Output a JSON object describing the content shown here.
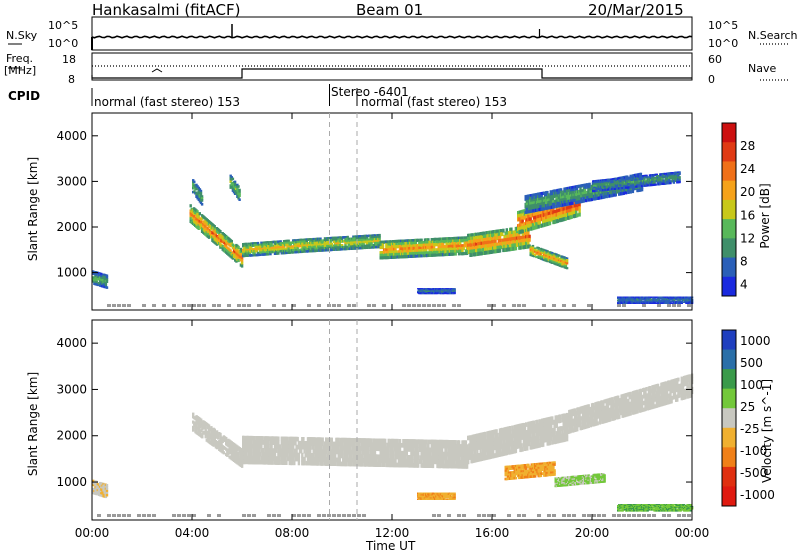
{
  "header": {
    "station": "Hankasalmi (fitACF)",
    "beam": "Beam 01",
    "date": "20/Mar/2015"
  },
  "panels": {
    "nsky": {
      "left_label": "N.Sky",
      "tick_top": "10^5",
      "tick_bottom": "10^0",
      "right_tick_top": "10^5",
      "right_tick_bottom": "10^0",
      "right_label": "N.Search"
    },
    "freq": {
      "left_label_1": "Freq.",
      "left_label_2": "[MHz]",
      "tick_top": "18",
      "tick_bottom": "8",
      "right_tick_top": "60",
      "right_tick_bottom": "0",
      "right_label": "Nave"
    },
    "cpid": {
      "label": "CPID",
      "segments": [
        {
          "name": "normal (fast stereo) 153",
          "start_hour": 0.0
        },
        {
          "name": "Stereo -6401",
          "start_hour": 9.5
        },
        {
          "name": "normal (fast stereo) 153",
          "start_hour": 10.6
        }
      ]
    }
  },
  "time_axis": {
    "label": "Time UT",
    "ticks": [
      "00:00",
      "04:00",
      "08:00",
      "12:00",
      "16:00",
      "20:00",
      "00:00"
    ]
  },
  "power_panel": {
    "ylabel": "Slant Range [km]",
    "yticks": [
      "4000",
      "3000",
      "2000",
      "1000"
    ],
    "colorbar_label": "Power [dB]",
    "colorbar_ticks": [
      "28",
      "24",
      "20",
      "16",
      "12",
      "8",
      "4"
    ]
  },
  "velocity_panel": {
    "ylabel": "Slant Range [km]",
    "yticks": [
      "4000",
      "3000",
      "2000",
      "1000"
    ],
    "colorbar_label": "Velocity [m s^-1]",
    "colorbar_ticks": [
      "1000",
      "500",
      "100",
      "25",
      "-25",
      "-100",
      "-500",
      "-1000"
    ]
  },
  "colors": {
    "power_scale": [
      "#1a2adf",
      "#2a5fb8",
      "#3f8f6a",
      "#58b85a",
      "#c8c81a",
      "#f5a21a",
      "#f07018",
      "#e03a14",
      "#cc1010"
    ],
    "velocity_scale": [
      "#1f3fbf",
      "#2a6fa8",
      "#3a9a4a",
      "#73c83a",
      "#c8c8c0",
      "#f0b030",
      "#f08018",
      "#e03010",
      "#e01a10"
    ],
    "ground_scatter": "#9a9a9a"
  },
  "chart_data": [
    {
      "type": "heatmap",
      "name": "power",
      "x_range_hours": [
        0,
        24
      ],
      "y_range_km": [
        180,
        4500
      ],
      "z_range_db": [
        0,
        30
      ],
      "bands": [
        {
          "t0": 3.9,
          "t1": 6.0,
          "r0": 2300,
          "r1": 1300,
          "w": 400,
          "v": 20
        },
        {
          "t0": 4.0,
          "t1": 4.4,
          "r0": 2900,
          "r1": 2600,
          "w": 300,
          "v": 10
        },
        {
          "t0": 5.5,
          "t1": 5.9,
          "r0": 3000,
          "r1": 2700,
          "w": 300,
          "v": 12
        },
        {
          "t0": 6.0,
          "t1": 8.5,
          "r0": 1500,
          "r1": 1600,
          "w": 300,
          "v": 16
        },
        {
          "t0": 8.5,
          "t1": 11.5,
          "r0": 1600,
          "r1": 1700,
          "w": 300,
          "v": 14
        },
        {
          "t0": 11.5,
          "t1": 15.0,
          "r0": 1500,
          "r1": 1600,
          "w": 400,
          "v": 18
        },
        {
          "t0": 15.0,
          "t1": 17.5,
          "r0": 1600,
          "r1": 1800,
          "w": 500,
          "v": 20
        },
        {
          "t0": 17.0,
          "t1": 19.5,
          "r0": 2100,
          "r1": 2500,
          "w": 500,
          "v": 22
        },
        {
          "t0": 17.5,
          "t1": 19.0,
          "r0": 1500,
          "r1": 1200,
          "w": 250,
          "v": 18
        },
        {
          "t0": 17.3,
          "t1": 22.0,
          "r0": 2500,
          "r1": 3000,
          "w": 400,
          "v": 10
        },
        {
          "t0": 20.0,
          "t1": 23.5,
          "r0": 2900,
          "r1": 3100,
          "w": 250,
          "v": 8
        },
        {
          "t0": 0.0,
          "t1": 0.6,
          "r0": 900,
          "r1": 800,
          "w": 300,
          "v": 10
        },
        {
          "t0": 13.0,
          "t1": 14.5,
          "r0": 600,
          "r1": 600,
          "w": 120,
          "v": 6
        },
        {
          "t0": 21.0,
          "t1": 24.0,
          "r0": 400,
          "r1": 400,
          "w": 150,
          "v": 6
        }
      ]
    },
    {
      "type": "heatmap",
      "name": "velocity",
      "x_range_hours": [
        0,
        24
      ],
      "y_range_km": [
        180,
        4500
      ],
      "z_range_ms": [
        -1000,
        1000
      ],
      "bands": [
        {
          "t0": 4.0,
          "t1": 6.0,
          "r0": 2300,
          "r1": 1500,
          "w": 400,
          "v": 0
        },
        {
          "t0": 6.0,
          "t1": 15.0,
          "r0": 1700,
          "r1": 1600,
          "w": 600,
          "v": 0
        },
        {
          "t0": 15.0,
          "t1": 19.0,
          "r0": 1700,
          "r1": 2200,
          "w": 600,
          "v": 0
        },
        {
          "t0": 19.0,
          "t1": 24.0,
          "r0": 2300,
          "r1": 3100,
          "w": 500,
          "v": 0
        },
        {
          "t0": 16.5,
          "t1": 18.5,
          "r0": 1200,
          "r1": 1300,
          "w": 300,
          "v": -300
        },
        {
          "t0": 18.5,
          "t1": 20.5,
          "r0": 1000,
          "r1": 1100,
          "w": 200,
          "v": 150
        },
        {
          "t0": 13.0,
          "t1": 14.5,
          "r0": 700,
          "r1": 700,
          "w": 150,
          "v": -300
        },
        {
          "t0": 0.0,
          "t1": 0.6,
          "r0": 900,
          "r1": 800,
          "w": 300,
          "v": -60
        },
        {
          "t0": 21.0,
          "t1": 24.0,
          "r0": 450,
          "r1": 450,
          "w": 150,
          "v": 300
        }
      ]
    }
  ]
}
